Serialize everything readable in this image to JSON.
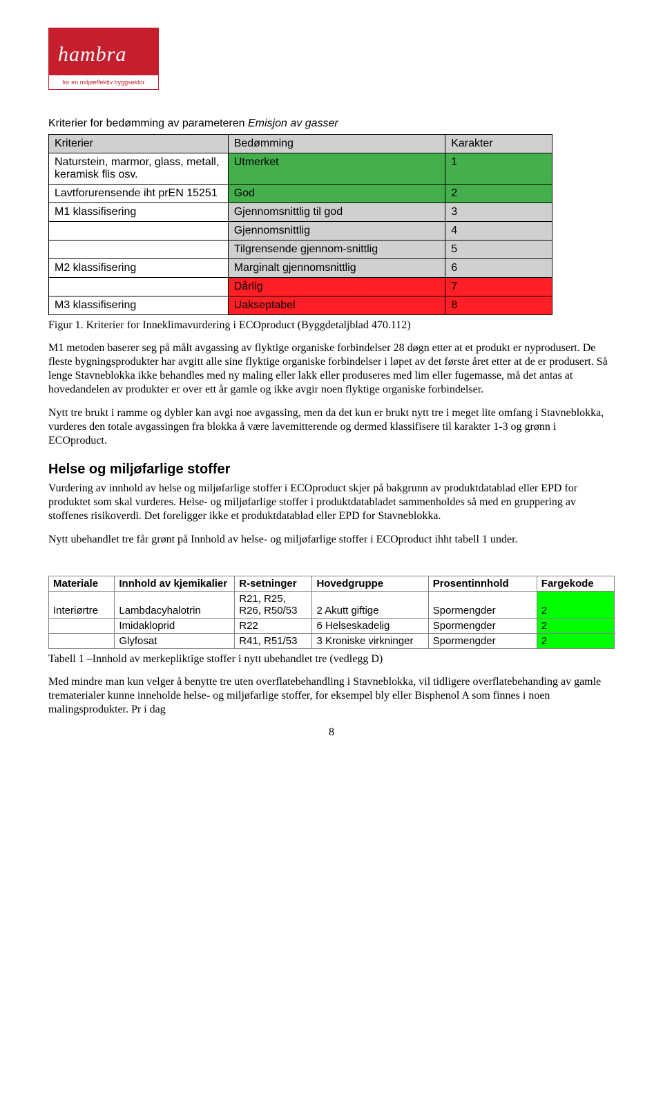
{
  "logo": {
    "brand": "hambra",
    "tagline": "for en miljøeffektiv byggsektor"
  },
  "criteria_table": {
    "title_prefix": "Kriterier for bedømming av parameteren ",
    "title_emph": "Emisjon av gasser",
    "headers": [
      "Kriterier",
      "Bedømming",
      "Karakter"
    ],
    "col_widths": [
      "260px",
      "315px",
      "155px"
    ],
    "rows": [
      {
        "cells": [
          "Naturstein, marmor, glass, metall, keramisk flis osv.",
          "Utmerket",
          "1"
        ],
        "bg": "#44af4c"
      },
      {
        "cells": [
          "Lavtforurensende iht prEN 15251",
          "God",
          "2"
        ],
        "bg": "#44af4c"
      },
      {
        "cells": [
          "M1 klassifisering",
          "Gjennomsnittlig til god",
          "3"
        ],
        "bg": "#d0d0cf"
      },
      {
        "cells": [
          "",
          "Gjennomsnittlig",
          "4"
        ],
        "bg": "#d0d0cf"
      },
      {
        "cells": [
          "",
          "Tilgrensende gjennom-snittlig",
          "5"
        ],
        "bg": "#d0d0cf"
      },
      {
        "cells": [
          "M2 klassifisering",
          "Marginalt gjennomsnittlig",
          "6"
        ],
        "bg": "#d0d0cf"
      },
      {
        "cells": [
          "",
          "Dårlig",
          "7"
        ],
        "bg": "#ff1f24"
      },
      {
        "cells": [
          "M3 klassifisering",
          "Uakseptabel",
          "8"
        ],
        "bg": "#ff1f24"
      }
    ]
  },
  "caption1": "Figur 1. Kriterier for Inneklimavurdering i ECOproduct (Byggdetaljblad 470.112)",
  "para1": "M1 metoden baserer seg på målt avgassing av flyktige organiske forbindelser 28 døgn etter at et produkt er nyprodusert. De fleste bygningsprodukter har avgitt alle sine flyktige organiske forbindelser i løpet av det første året etter at de er produsert. Så lenge Stavneblokka ikke behandles med ny maling eller lakk eller produseres med lim eller fugemasse, må det antas at hovedandelen av produkter er over ett år gamle og ikke avgir noen flyktige organiske forbindelser.",
  "para2": "Nytt tre brukt i ramme og dybler kan avgi noe avgassing, men da det kun er brukt nytt tre i meget lite omfang i Stavneblokka, vurderes den totale avgassingen fra blokka å være lavemitterende og dermed klassifisere til karakter 1-3 og grønn i ECOproduct.",
  "section_heading": "Helse og miljøfarlige stoffer",
  "para3": "Vurdering av innhold av helse og miljøfarlige stoffer i ECOproduct skjer på bakgrunn av produktdatablad eller EPD for produktet som skal vurderes. Helse- og miljøfarlige stoffer i produktdatabladet sammenholdes så med en gruppering av stoffenes risikoverdi. Det foreligger ikke et produktdatablad eller EPD for Stavneblokka.",
  "para4": "Nytt ubehandlet tre får grønt på Innhold av helse- og miljøfarlige stoffer i ECOproduct ihht tabell 1 under.",
  "chem_table": {
    "headers": [
      "Materiale",
      "Innhold av kjemikalier",
      "R-setninger",
      "Hovedgruppe",
      "Prosentinnhold",
      "Fargekode"
    ],
    "col_widths": [
      "85px",
      "155px",
      "100px",
      "150px",
      "140px",
      "100px"
    ],
    "green": "#00ff00",
    "rows": [
      {
        "cells": [
          "Interiørtre",
          "Lambdacyhalotrin",
          "R21, R25, R26, R50/53",
          "2 Akutt giftige",
          "Spormengder",
          "2"
        ]
      },
      {
        "cells": [
          "",
          "Imidakloprid",
          "R22",
          "6 Helseskadelig",
          "Spormengder",
          "2"
        ]
      },
      {
        "cells": [
          "",
          "Glyfosat",
          "R41, R51/53",
          "3 Kroniske virkninger",
          "Spormengder",
          "2"
        ]
      }
    ]
  },
  "caption2": "Tabell 1 –Innhold av merkepliktige stoffer i nytt ubehandlet tre (vedlegg D)",
  "para5": "Med mindre man kun velger å benytte tre uten overflatebehandling i Stavneblokka, vil tidligere overflatebehanding av gamle trematerialer kunne inneholde helse- og miljøfarlige stoffer, for eksempel bly eller Bisphenol A som finnes i noen malingsprodukter. Pr i dag",
  "page_number": "8"
}
